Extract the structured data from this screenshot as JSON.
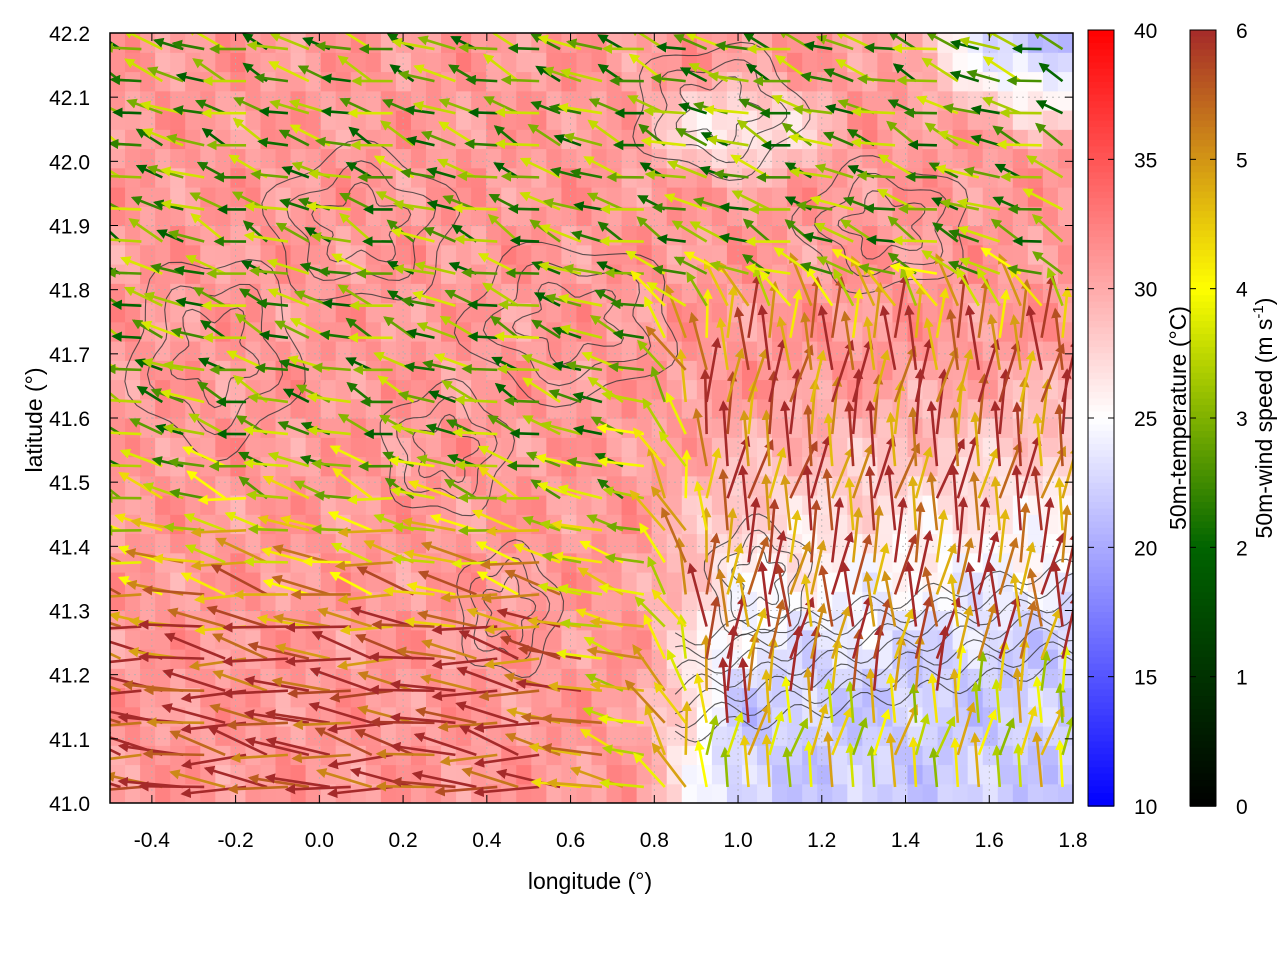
{
  "chart_data": {
    "type": "heatmap",
    "title": "",
    "xlabel": "longitude (°)",
    "ylabel": "latitude (°)",
    "xlim": [
      -0.5,
      1.8
    ],
    "ylim": [
      41.0,
      42.2
    ],
    "x_ticks": [
      -0.4,
      -0.2,
      0.0,
      0.2,
      0.4,
      0.6,
      0.8,
      1.0,
      1.2,
      1.4,
      1.6,
      1.8
    ],
    "x_tick_labels": [
      "-0.4",
      "-0.2",
      "0.0",
      "0.2",
      "0.4",
      "0.6",
      "0.8",
      "1.0",
      "1.2",
      "1.4",
      "1.6",
      "1.8"
    ],
    "y_ticks": [
      41.0,
      41.1,
      41.2,
      41.3,
      41.4,
      41.5,
      41.6,
      41.7,
      41.8,
      41.9,
      42.0,
      42.1,
      42.2
    ],
    "y_tick_labels": [
      "41.0",
      "41.1",
      "41.2",
      "41.3",
      "41.4",
      "41.5",
      "41.6",
      "41.7",
      "41.8",
      "41.9",
      "42.0",
      "42.1",
      "42.2"
    ],
    "grid": true,
    "layers": {
      "background": "50m-temperature",
      "vectors": "50m-wind speed",
      "contours": "terrain elevation (unlabeled)"
    },
    "colorbars": [
      {
        "label": "50m-temperature (°C)",
        "label_main": "50m-temperature (°C)",
        "range": [
          10,
          40
        ],
        "ticks": [
          10,
          15,
          20,
          25,
          30,
          35,
          40
        ],
        "tick_labels": [
          "10",
          "15",
          "20",
          "25",
          "30",
          "35",
          "40"
        ],
        "colors": [
          "#0000ff",
          "#ffffff",
          "#ff0000"
        ]
      },
      {
        "label": "50m-wind speed (m s-1)",
        "label_main": "50m-wind speed (m s",
        "label_sup": "-1",
        "label_end": ")",
        "range": [
          0,
          6
        ],
        "ticks": [
          0,
          1,
          2,
          3,
          4,
          5,
          6
        ],
        "tick_labels": [
          "0",
          "1",
          "2",
          "3",
          "4",
          "5",
          "6"
        ],
        "colors": [
          "#000000",
          "#006400",
          "#ffff00",
          "#a52a2a"
        ]
      }
    ],
    "temperature_field_summary": [
      {
        "region": "west and central land",
        "approx_value": 31
      },
      {
        "region": "southeast coastal",
        "approx_value": 21
      },
      {
        "region": "northeast corner",
        "approx_value": 18
      }
    ],
    "wind_field_summary": [
      {
        "region": "southwest, lower left",
        "direction": "westward",
        "approx_speed": 6
      },
      {
        "region": "north",
        "direction": "westward, light",
        "approx_speed": 2.5
      },
      {
        "region": "east, inland of coast",
        "direction": "northward",
        "approx_speed": 5.5
      },
      {
        "region": "southeast coast",
        "direction": "northward",
        "approx_speed": 4
      }
    ]
  }
}
